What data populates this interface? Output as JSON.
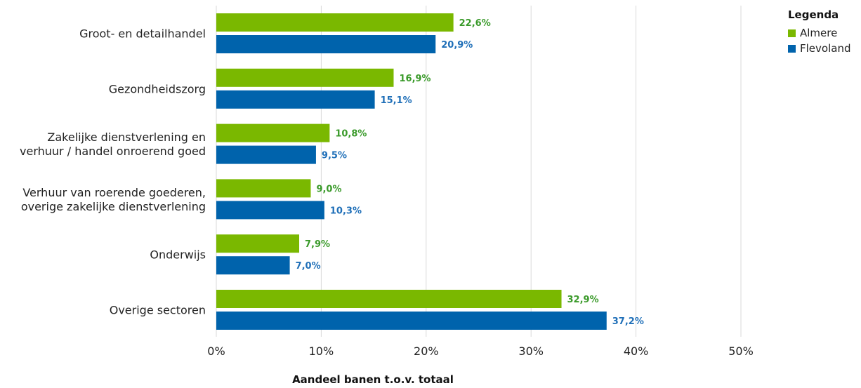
{
  "chart_data": {
    "type": "bar",
    "orientation": "horizontal",
    "categories": [
      [
        "Groot- en detailhandel"
      ],
      [
        "Gezondheidszorg"
      ],
      [
        "Zakelijke dienstverlening en",
        "verhuur / handel onroerend goed"
      ],
      [
        "Verhuur van roerende goederen,",
        "overige zakelijke dienstverlening"
      ],
      [
        "Onderwijs"
      ],
      [
        "Overige sectoren"
      ]
    ],
    "series": [
      {
        "name": "Almere",
        "color": "#7ab800",
        "label_color": "#3a9a2a",
        "values": [
          22.6,
          16.9,
          10.8,
          9.0,
          7.9,
          32.9
        ],
        "labels": [
          "22,6%",
          "16,9%",
          "10,8%",
          "9,0%",
          "7,9%",
          "32,9%"
        ]
      },
      {
        "name": "Flevoland",
        "color": "#0063ac",
        "label_color": "#1f6fb8",
        "values": [
          20.9,
          15.1,
          9.5,
          10.3,
          7.0,
          37.2
        ],
        "labels": [
          "20,9%",
          "15,1%",
          "9,5%",
          "10,3%",
          "7,0%",
          "37,2%"
        ]
      }
    ],
    "xlim": [
      0,
      50
    ],
    "xticks": [
      0,
      10,
      20,
      30,
      40,
      50
    ],
    "xtick_labels": [
      "0%",
      "10%",
      "20%",
      "30%",
      "40%",
      "50%"
    ],
    "xlabel": "Aandeel banen t.o.v. totaal",
    "grid": true,
    "legend": {
      "title": "Legenda",
      "placement": "top-right"
    }
  }
}
